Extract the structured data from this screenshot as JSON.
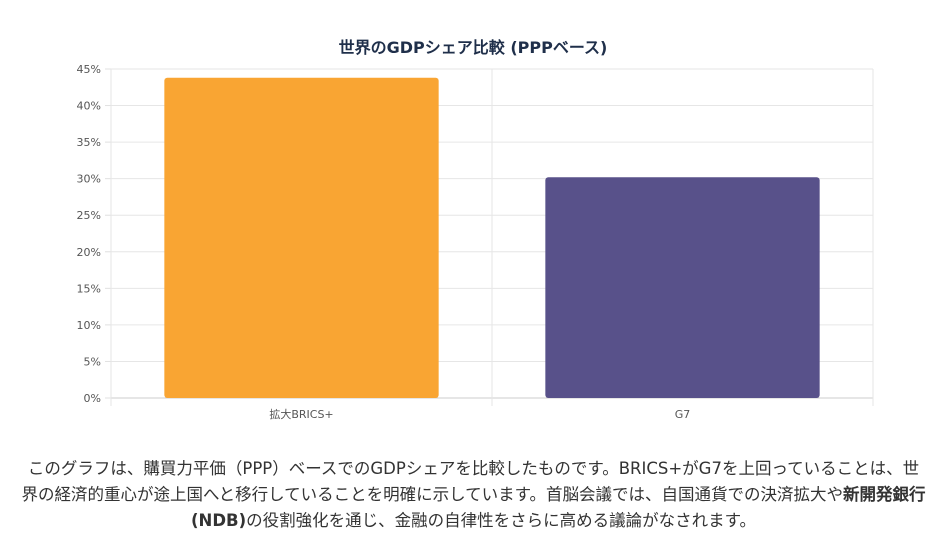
{
  "chart_data": {
    "type": "bar",
    "title": "世界のGDPシェア比較 (PPPベース)",
    "categories": [
      "拡大BRICS+",
      "G7"
    ],
    "values": [
      43.8,
      30.2
    ],
    "colors": [
      "#F9A533",
      "#58518A"
    ],
    "yticks": [
      "0%",
      "5%",
      "10%",
      "15%",
      "20%",
      "25%",
      "30%",
      "35%",
      "40%",
      "45%"
    ],
    "ylim": [
      0,
      45
    ],
    "grid": true,
    "legend": "none"
  },
  "caption": {
    "part1": "このグラフは、購買力平価（PPP）ベースでのGDPシェアを比較したものです。BRICS+がG7を上回っていることは、世界の経済的重心が途上国へと移行していることを明確に示しています。首脳会議では、自国通貨での決済拡大や",
    "bold": "新開発銀行(NDB)",
    "part2": "の役割強化を通じ、金融の自律性をさらに高める議論がなされます。"
  }
}
